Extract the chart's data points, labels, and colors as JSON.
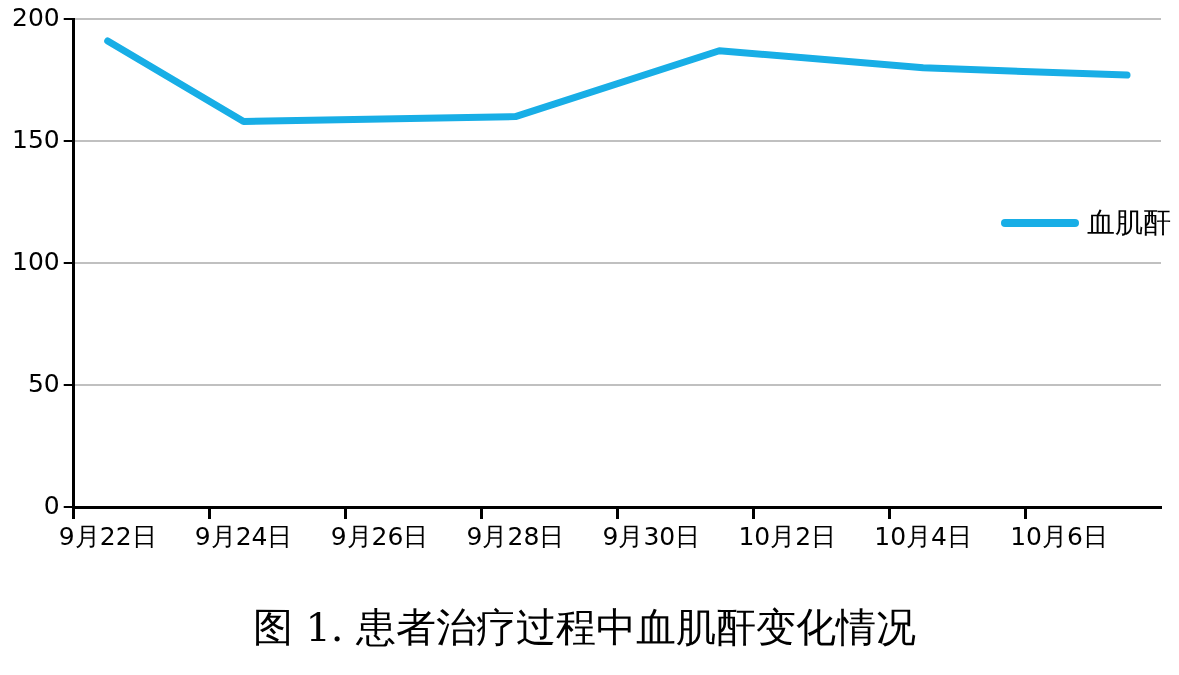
{
  "chart_data": {
    "type": "line",
    "title": "图 1. 患者治疗过程中血肌酐变化情况",
    "categories": [
      "9月22日",
      null,
      "9月24日",
      null,
      "9月26日",
      null,
      "9月28日",
      null,
      "9月30日",
      null,
      "10月2日",
      null,
      "10月4日",
      null,
      "10月6日",
      null
    ],
    "series": [
      {
        "name": "血肌酐",
        "color": "#18aee6",
        "values": [
          191,
          null,
          158,
          null,
          null,
          null,
          160,
          null,
          null,
          187,
          null,
          null,
          180,
          null,
          null,
          177
        ]
      }
    ],
    "ylim": [
      0,
      200
    ],
    "yticks": [
      0,
      50,
      100,
      150,
      200
    ],
    "grid": "y",
    "legend": "right",
    "marker": "none",
    "line_style": "solid"
  }
}
